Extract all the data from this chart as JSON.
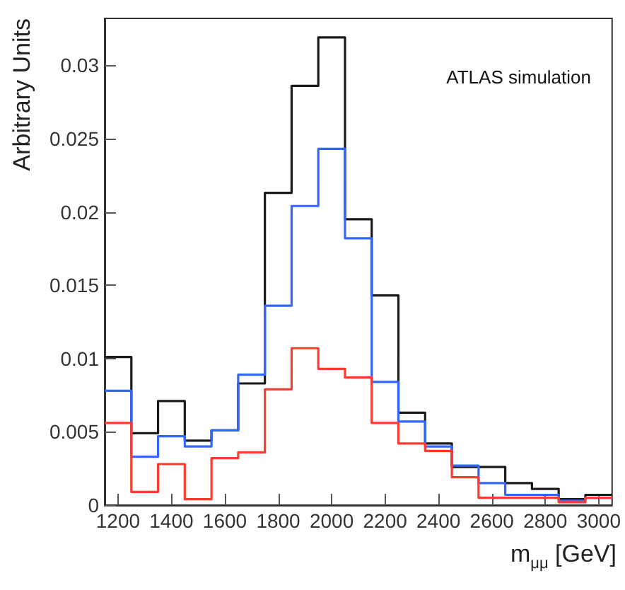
{
  "chart_data": {
    "type": "histogram",
    "xlabel": "m$_{μμ}$ [GeV]",
    "ylabel": "Arbitrary Units",
    "annotations": [
      "ATLAS simulation"
    ],
    "bins": [
      1150,
      1250,
      1350,
      1450,
      1550,
      1650,
      1750,
      1850,
      1950,
      2050,
      2150,
      2250,
      2350,
      2450,
      2550,
      2650,
      2750,
      2850,
      2950,
      3050
    ],
    "series": [
      {
        "color": "#1a1a1a",
        "values": [
          0.0101,
          0.0049,
          0.0071,
          0.0044,
          0.0051,
          0.0083,
          0.0213,
          0.0286,
          0.0319,
          0.0195,
          0.0143,
          0.0063,
          0.0042,
          0.0026,
          0.0026,
          0.0015,
          0.0011,
          0.0004,
          0.0007
        ]
      },
      {
        "color": "#3366ff",
        "values": [
          0.0078,
          0.0033,
          0.0047,
          0.004,
          0.0051,
          0.0089,
          0.0136,
          0.0204,
          0.0243,
          0.0182,
          0.0084,
          0.0057,
          0.004,
          0.0027,
          0.0015,
          0.0007,
          0.0007,
          0.0003,
          0.0005
        ]
      },
      {
        "color": "#ff3b2f",
        "values": [
          0.0056,
          0.0009,
          0.0028,
          0.0004,
          0.0032,
          0.0036,
          0.0079,
          0.0107,
          0.0093,
          0.0087,
          0.0056,
          0.0042,
          0.0037,
          0.0019,
          0.0005,
          0.0005,
          0.0005,
          0.0002,
          0.0005
        ]
      }
    ],
    "xlim": [
      1150,
      3050
    ],
    "xticks": [
      1200,
      1400,
      1600,
      1800,
      2000,
      2200,
      2400,
      2600,
      2800,
      3000
    ],
    "ylim": [
      0,
      0.0332
    ],
    "yticks": [
      0,
      0.005,
      0.01,
      0.015,
      0.02,
      0.025,
      0.03
    ],
    "grid": false
  }
}
